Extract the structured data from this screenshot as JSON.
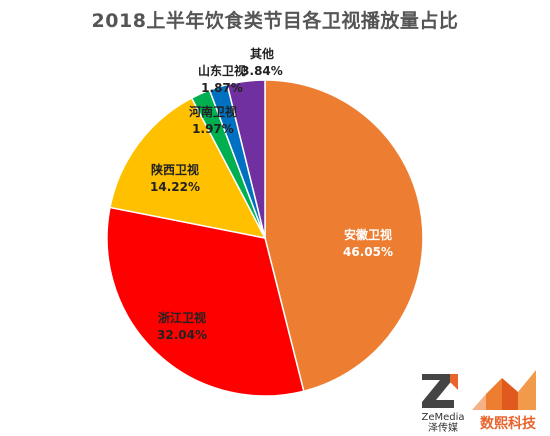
{
  "colors": {
    "title": "#555555",
    "label_dark": "#222222",
    "label_light": "#ffffff",
    "brand_orange": "#e8642c"
  },
  "chart_data": {
    "type": "pie",
    "title": "2018上半年饮食类节目各卫视播放量占比",
    "start_angle_deg": 0,
    "direction": "clockwise",
    "slices": [
      {
        "name": "安徽卫视",
        "value": 46.05,
        "label": "46.05%",
        "color": "#ED7D31",
        "label_color": "#ffffff"
      },
      {
        "name": "浙江卫视",
        "value": 32.04,
        "label": "32.04%",
        "color": "#FF0000",
        "label_color": "#222222"
      },
      {
        "name": "陕西卫视",
        "value": 14.22,
        "label": "14.22%",
        "color": "#FFC000",
        "label_color": "#222222"
      },
      {
        "name": "河南卫视",
        "value": 1.97,
        "label": "1.97%",
        "color": "#00B050",
        "label_color": "#222222"
      },
      {
        "name": "山东卫视",
        "value": 1.87,
        "label": "1.87%",
        "color": "#0070C0",
        "label_color": "#222222"
      },
      {
        "name": "其他",
        "value": 3.84,
        "label": "3.84%",
        "color": "#7030A0",
        "label_color": "#222222"
      }
    ]
  },
  "logos": {
    "zemedia_name": "ZeMedia",
    "zemedia_cn": "泽传媒",
    "shuxi_cn": "数熙科技"
  }
}
